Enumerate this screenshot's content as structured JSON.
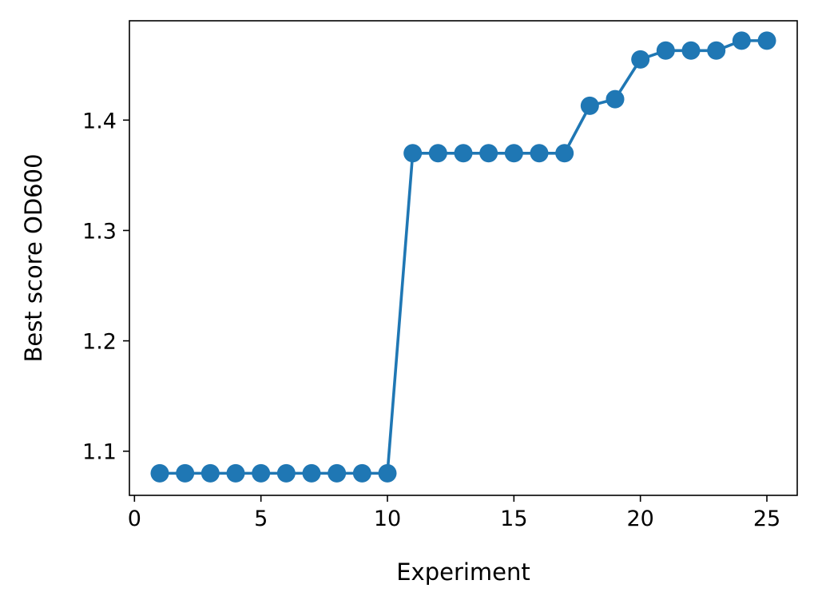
{
  "chart_data": {
    "type": "line",
    "title": "",
    "xlabel": "Experiment",
    "ylabel": "Best score OD600",
    "xlim": [
      -0.2,
      26.2
    ],
    "ylim": [
      1.06,
      1.49
    ],
    "xticks": [
      0,
      5,
      10,
      15,
      20,
      25
    ],
    "xtick_labels": [
      "0",
      "5",
      "10",
      "15",
      "20",
      "25"
    ],
    "yticks": [
      1.1,
      1.2,
      1.3,
      1.4
    ],
    "ytick_labels": [
      "1.1",
      "1.2",
      "1.3",
      "1.4"
    ],
    "grid": false,
    "legend": "none",
    "series": [
      {
        "color": "#1f77b4",
        "marker": "circle",
        "x": [
          1,
          2,
          3,
          4,
          5,
          6,
          7,
          8,
          9,
          10,
          11,
          12,
          13,
          14,
          15,
          16,
          17,
          18,
          19,
          20,
          21,
          22,
          23,
          24,
          25
        ],
        "y": [
          1.08,
          1.08,
          1.08,
          1.08,
          1.08,
          1.08,
          1.08,
          1.08,
          1.08,
          1.08,
          1.37,
          1.37,
          1.37,
          1.37,
          1.37,
          1.37,
          1.37,
          1.413,
          1.419,
          1.455,
          1.463,
          1.463,
          1.463,
          1.472,
          1.472
        ]
      }
    ]
  }
}
